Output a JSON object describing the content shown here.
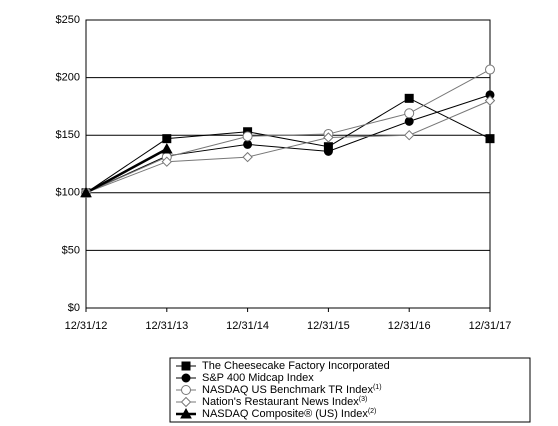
{
  "chart_data": {
    "type": "line",
    "categories": [
      "12/31/12",
      "12/31/13",
      "12/31/14",
      "12/31/15",
      "12/31/16",
      "12/31/17"
    ],
    "series": [
      {
        "name": "The Cheesecake Factory Incorporated",
        "color": "#000000",
        "marker": "square",
        "width": 1,
        "values": [
          100,
          147,
          153,
          140,
          182,
          147
        ]
      },
      {
        "name": "S&P 400 Midcap Index",
        "color": "#000000",
        "marker": "circle",
        "width": 1,
        "values": [
          100,
          132,
          142,
          136,
          162,
          185
        ]
      },
      {
        "name": "NASDAQ US Benchmark TR Index",
        "name_note": "(1)",
        "color": "#777777",
        "marker": "open-circle",
        "width": 1,
        "values": [
          100,
          131,
          149,
          151,
          169,
          207
        ]
      },
      {
        "name": "Nation's Restaurant News Index",
        "name_note": "(3)",
        "color": "#777777",
        "marker": "open-diamond",
        "width": 1,
        "values": [
          100,
          127,
          131,
          148,
          150,
          180
        ]
      },
      {
        "name": "NASDAQ Composite® (US) Index",
        "name_note": "(2)",
        "color": "#000000",
        "marker": "triangle",
        "width": 2.5,
        "values": [
          100,
          138,
          null,
          null,
          null,
          null
        ]
      }
    ],
    "ylim": [
      0,
      250
    ],
    "yticks": [
      {
        "value": 0,
        "label": "$0"
      },
      {
        "value": 50,
        "label": "$50"
      },
      {
        "value": 100,
        "label": "$100"
      },
      {
        "value": 150,
        "label": "$150"
      },
      {
        "value": 200,
        "label": "$200"
      },
      {
        "value": 250,
        "label": "$250"
      }
    ],
    "grid": true
  }
}
